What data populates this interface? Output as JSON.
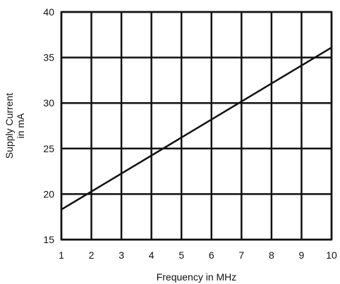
{
  "chart_data": {
    "type": "line",
    "xlabel": "Frequency in MHz",
    "ylabel": [
      "Supply Current",
      "in mA"
    ],
    "xlim": [
      1,
      10
    ],
    "ylim": [
      15,
      40
    ],
    "x_ticks": [
      1,
      2,
      3,
      4,
      5,
      6,
      7,
      8,
      9,
      10
    ],
    "y_ticks": [
      15,
      20,
      25,
      30,
      35,
      40
    ],
    "grid": true,
    "series": [
      {
        "x": [
          1,
          10
        ],
        "y": [
          18.3,
          36.1
        ]
      }
    ]
  }
}
